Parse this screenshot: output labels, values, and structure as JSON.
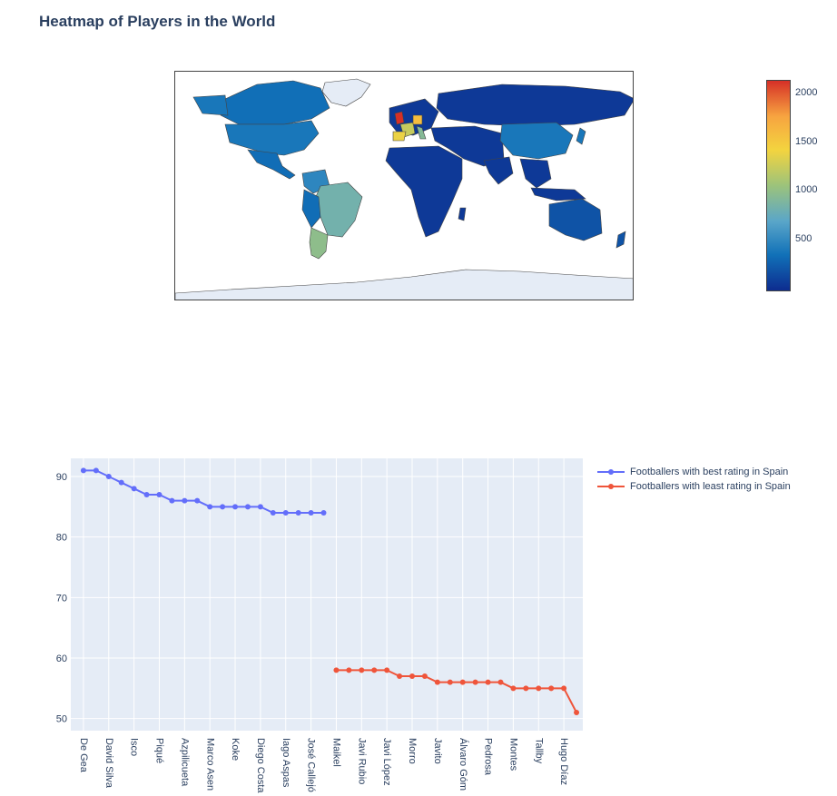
{
  "title": "Heatmap of Players in the World",
  "chart_data": [
    {
      "type": "choropleth",
      "title": "Heatmap of Players in the World",
      "colorbar": {
        "ticks": [
          500,
          1000,
          1500,
          2000
        ],
        "tick_labels": [
          "500",
          "1000",
          "1500",
          "2000"
        ],
        "range": [
          0,
          2150
        ],
        "colorscale": [
          "#0d2c8f",
          "#1171b8",
          "#5aa6c9",
          "#9cc37b",
          "#f3d43f",
          "#f7a440",
          "#d63027"
        ]
      },
      "regions": [
        {
          "name": "England",
          "value": 2150
        },
        {
          "name": "Germany",
          "value": 1600
        },
        {
          "name": "Spain",
          "value": 1400
        },
        {
          "name": "France",
          "value": 1250
        },
        {
          "name": "Argentina",
          "value": 1000
        },
        {
          "name": "Italy",
          "value": 950
        },
        {
          "name": "Brazil",
          "value": 850
        },
        {
          "name": "Colombia",
          "value": 500
        },
        {
          "name": "Netherlands",
          "value": 450
        },
        {
          "name": "China",
          "value": 400
        },
        {
          "name": "United States",
          "value": 400
        },
        {
          "name": "Canada",
          "value": 350
        },
        {
          "name": "Japan",
          "value": 400
        },
        {
          "name": "Australia",
          "value": 200
        },
        {
          "name": "Russia",
          "value": 70
        },
        {
          "name": "Mexico",
          "value": 340
        }
      ]
    },
    {
      "type": "line",
      "yticks": [
        50,
        60,
        70,
        80,
        90
      ],
      "ylim": [
        48,
        93
      ],
      "legend": "top-right",
      "x_categories": [
        "De Gea",
        "David Silva",
        "Isco",
        "Piqué",
        "Azpilicueta",
        "Marco Asensio",
        "Koke",
        "Diego Costa",
        "Iago Aspas",
        "José Callejón",
        "Maikel",
        "Javi Rubio",
        "Javi López",
        "Morro",
        "Javito",
        "Álvaro Gómez",
        "Pedrosa",
        "Montes",
        "Tallby",
        "Hugo Díaz"
      ],
      "x_labels_shown": [
        "De Gea",
        "David Silva",
        "Isco",
        "Piqué",
        "Azpilicueta",
        "Marco Asen",
        "Koke",
        "Diego Costa",
        "Iago Aspas",
        "José Callejó",
        "Maikel",
        "Javi Rubio",
        "Javi López",
        "Morro",
        "Javito",
        "Álvaro Góm",
        "Pedrosa",
        "Montes",
        "Tallby",
        "Hugo Díaz"
      ],
      "series": [
        {
          "name": "Footballers with best rating in Spain",
          "color": "#636efa",
          "x": [
            0,
            0.5,
            1,
            1.5,
            2,
            2.5,
            3,
            3.5,
            4,
            4.5,
            5,
            5.5,
            6,
            6.5,
            7,
            7.5,
            8,
            8.5,
            9,
            9.5
          ],
          "values": [
            91,
            91,
            90,
            89,
            88,
            87,
            87,
            86,
            86,
            86,
            85,
            85,
            85,
            85,
            85,
            84,
            84,
            84,
            84,
            84
          ]
        },
        {
          "name": "Footballers with least rating in Spain",
          "color": "#ef553b",
          "x": [
            10,
            10.5,
            11,
            11.5,
            12,
            12.5,
            13,
            13.5,
            14,
            14.5,
            15,
            15.5,
            16,
            16.5,
            17,
            17.5,
            18,
            18.5,
            19,
            19.5
          ],
          "values": [
            58,
            58,
            58,
            58,
            58,
            57,
            57,
            57,
            56,
            56,
            56,
            56,
            56,
            56,
            55,
            55,
            55,
            55,
            55,
            51
          ]
        }
      ]
    }
  ]
}
